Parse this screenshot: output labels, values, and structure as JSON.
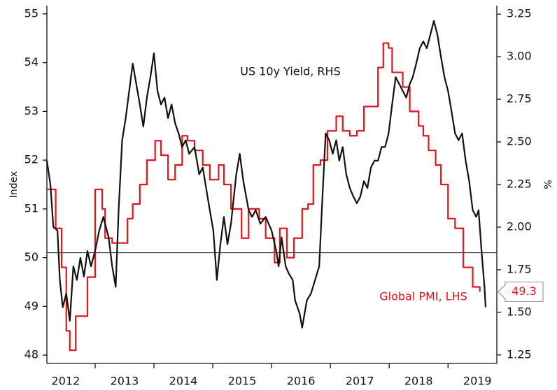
{
  "chart_data": {
    "type": "line",
    "y_label": "Index",
    "y2_label": "%",
    "xlim": [
      2012.18,
      2019.83
    ],
    "xticks": [
      2012,
      2013,
      2014,
      2015,
      2016,
      2017,
      2018,
      2019
    ],
    "ylim": [
      47.83,
      55.17
    ],
    "yticks": [
      48,
      49,
      50,
      51,
      52,
      53,
      54,
      55
    ],
    "y2lim": [
      1.2,
      3.3
    ],
    "y2ticks": [
      1.25,
      {
        "value": 1.5,
        "label": "1.50"
      },
      1.75,
      {
        "value": 2,
        "label": "2.00"
      },
      2.25,
      {
        "value": 2.5,
        "label": "2.50"
      },
      2.75,
      {
        "value": 3,
        "label": "3.00"
      },
      3.25
    ],
    "reference_line": {
      "axis": "y",
      "value": 50.1
    },
    "series": [
      {
        "name": "Global PMI, LHS",
        "color": "#e8141a",
        "step": true,
        "callout": true,
        "x": [
          2012.18,
          2012.33,
          2012.43,
          2012.51,
          2012.57,
          2012.67,
          2012.87,
          2013.0,
          2013.12,
          2013.17,
          2013.29,
          2013.55,
          2013.64,
          2013.76,
          2013.88,
          2014.02,
          2014.12,
          2014.24,
          2014.36,
          2014.48,
          2014.57,
          2014.69,
          2014.83,
          2014.95,
          2015.1,
          2015.19,
          2015.31,
          2015.49,
          2015.61,
          2015.79,
          2015.9,
          2016.05,
          2016.14,
          2016.26,
          2016.38,
          2016.52,
          2016.62,
          2016.71,
          2016.83,
          2016.95,
          2017.1,
          2017.21,
          2017.33,
          2017.45,
          2017.57,
          2017.81,
          2017.9,
          2017.99,
          2018.05,
          2018.23,
          2018.35,
          2018.5,
          2018.58,
          2018.67,
          2018.79,
          2018.88,
          2019.0,
          2019.12,
          2019.26,
          2019.42,
          2019.54
        ],
        "values": [
          51.4,
          50.6,
          49.8,
          48.5,
          48.1,
          48.8,
          49.6,
          51.4,
          51.0,
          50.4,
          50.3,
          50.8,
          51.1,
          51.5,
          52.0,
          52.4,
          52.1,
          51.6,
          51.9,
          52.5,
          52.4,
          52.2,
          51.9,
          51.6,
          51.9,
          51.5,
          51.0,
          50.4,
          51.0,
          50.8,
          50.4,
          49.9,
          50.6,
          50.0,
          50.4,
          51.0,
          51.1,
          51.9,
          52.0,
          52.6,
          52.9,
          52.6,
          52.5,
          52.6,
          53.1,
          53.9,
          54.4,
          54.3,
          53.8,
          53.5,
          53.0,
          52.7,
          52.5,
          52.2,
          51.9,
          51.5,
          50.8,
          50.6,
          49.8,
          49.4,
          49.3
        ]
      },
      {
        "name": "US 10y Yield, RHS",
        "color": "#111111",
        "axis": "y2",
        "x": [
          2012.18,
          2012.24,
          2012.29,
          2012.36,
          2012.4,
          2012.45,
          2012.51,
          2012.57,
          2012.63,
          2012.69,
          2012.75,
          2012.81,
          2012.87,
          2012.93,
          2013.0,
          2013.07,
          2013.14,
          2013.23,
          2013.29,
          2013.35,
          2013.4,
          2013.46,
          2013.52,
          2013.58,
          2013.64,
          2013.7,
          2013.76,
          2013.82,
          2013.88,
          2013.94,
          2014.0,
          2014.06,
          2014.12,
          2014.18,
          2014.24,
          2014.3,
          2014.36,
          2014.42,
          2014.48,
          2014.54,
          2014.6,
          2014.69,
          2014.77,
          2014.83,
          2014.93,
          2015.01,
          2015.07,
          2015.13,
          2015.19,
          2015.25,
          2015.31,
          2015.4,
          2015.46,
          2015.52,
          2015.61,
          2015.67,
          2015.73,
          2015.81,
          2015.9,
          2016.0,
          2016.08,
          2016.12,
          2016.17,
          2016.24,
          2016.29,
          2016.36,
          2016.4,
          2016.48,
          2016.52,
          2016.6,
          2016.67,
          2016.74,
          2016.81,
          2016.86,
          2016.92,
          2016.98,
          2017.04,
          2017.1,
          2017.15,
          2017.21,
          2017.27,
          2017.33,
          2017.39,
          2017.45,
          2017.51,
          2017.57,
          2017.63,
          2017.69,
          2017.75,
          2017.81,
          2017.87,
          2017.93,
          2017.99,
          2018.05,
          2018.11,
          2018.17,
          2018.23,
          2018.29,
          2018.35,
          2018.4,
          2018.46,
          2018.52,
          2018.58,
          2018.64,
          2018.7,
          2018.76,
          2018.82,
          2018.88,
          2018.94,
          2019.0,
          2019.06,
          2019.12,
          2019.18,
          2019.24,
          2019.3,
          2019.36,
          2019.42,
          2019.48,
          2019.52,
          2019.57,
          2019.62,
          2019.64
        ],
        "values": [
          2.39,
          2.25,
          2.0,
          1.98,
          1.69,
          1.53,
          1.61,
          1.45,
          1.77,
          1.69,
          1.82,
          1.71,
          1.86,
          1.77,
          1.86,
          1.98,
          2.06,
          1.94,
          1.77,
          1.65,
          2.1,
          2.51,
          2.64,
          2.8,
          2.96,
          2.84,
          2.72,
          2.59,
          2.76,
          2.88,
          3.02,
          2.8,
          2.72,
          2.76,
          2.64,
          2.72,
          2.61,
          2.55,
          2.47,
          2.51,
          2.43,
          2.47,
          2.31,
          2.35,
          2.14,
          1.98,
          1.69,
          1.9,
          2.06,
          1.9,
          2.02,
          2.31,
          2.43,
          2.27,
          2.1,
          2.06,
          2.1,
          2.02,
          2.06,
          1.98,
          1.86,
          1.77,
          1.94,
          1.77,
          1.73,
          1.69,
          1.57,
          1.49,
          1.41,
          1.57,
          1.61,
          1.69,
          1.77,
          2.14,
          2.55,
          2.51,
          2.43,
          2.51,
          2.39,
          2.47,
          2.31,
          2.23,
          2.18,
          2.14,
          2.18,
          2.27,
          2.23,
          2.35,
          2.39,
          2.39,
          2.47,
          2.47,
          2.55,
          2.72,
          2.88,
          2.84,
          2.8,
          2.76,
          2.84,
          2.88,
          2.96,
          3.05,
          3.09,
          3.05,
          3.13,
          3.21,
          3.13,
          3.0,
          2.88,
          2.8,
          2.68,
          2.55,
          2.51,
          2.55,
          2.39,
          2.27,
          2.1,
          2.06,
          2.1,
          1.86,
          1.65,
          1.53
        ]
      }
    ]
  }
}
